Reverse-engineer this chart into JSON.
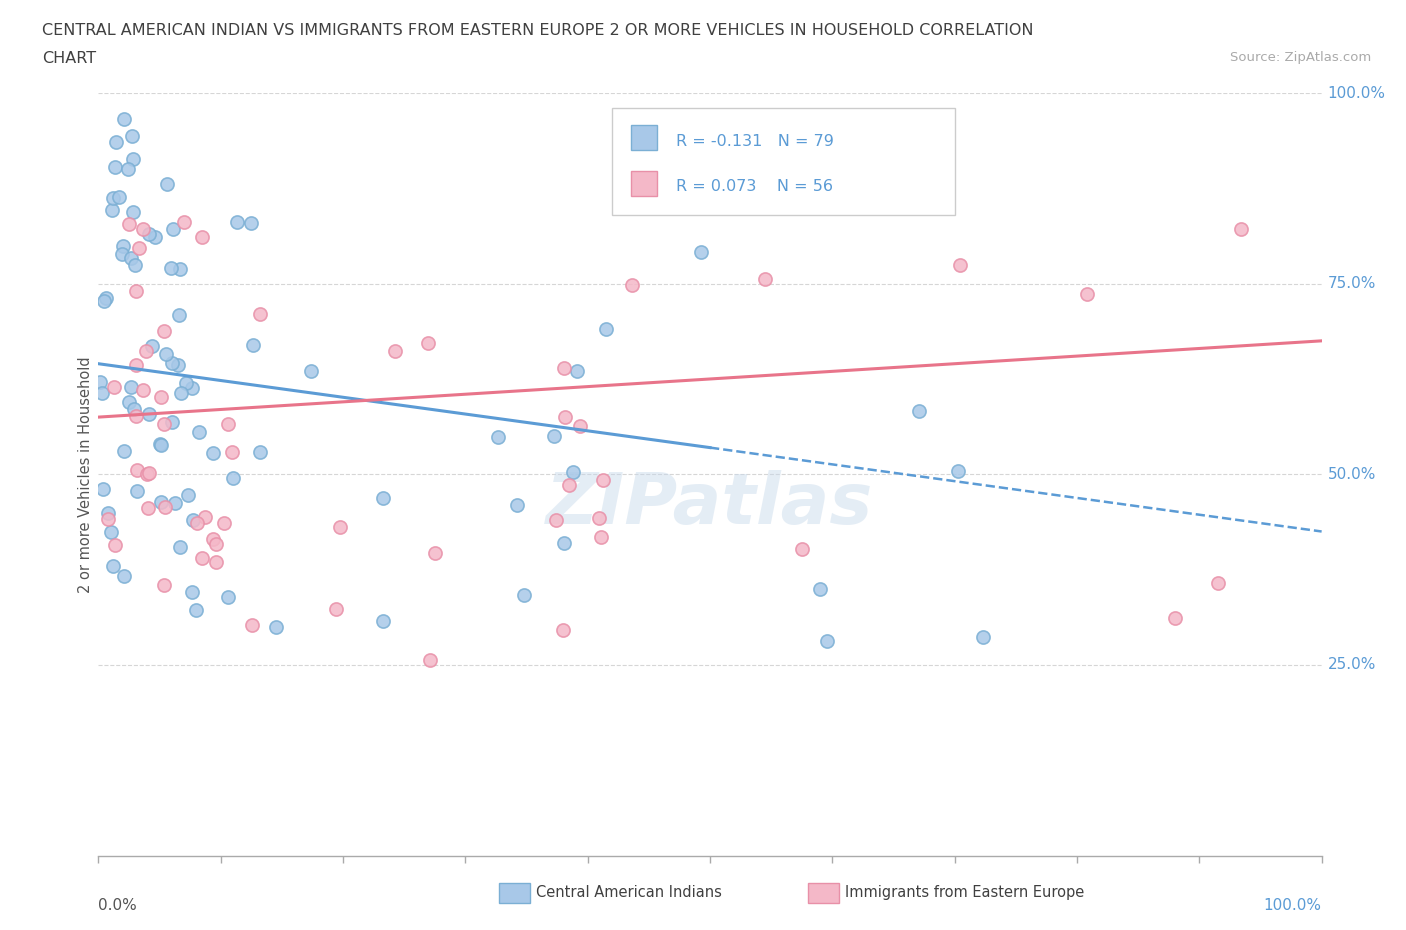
{
  "title_line1": "CENTRAL AMERICAN INDIAN VS IMMIGRANTS FROM EASTERN EUROPE 2 OR MORE VEHICLES IN HOUSEHOLD CORRELATION",
  "title_line2": "CHART",
  "source_text": "Source: ZipAtlas.com",
  "ylabel": "2 or more Vehicles in Household",
  "watermark": "ZIPatlas",
  "legend_r1": "R = -0.131",
  "legend_n1": "N = 79",
  "legend_r2": "R = 0.073",
  "legend_n2": "N = 56",
  "legend_label1": "Central American Indians",
  "legend_label2": "Immigrants from Eastern Europe",
  "color_blue_fill": "#a8c8e8",
  "color_blue_edge": "#7bafd4",
  "color_pink_fill": "#f4b8c8",
  "color_pink_edge": "#e890a8",
  "color_blue_line": "#5b9bd5",
  "color_pink_line": "#e8748a",
  "xlim": [
    0.0,
    1.0
  ],
  "ylim": [
    0.0,
    1.0
  ],
  "grid_color": "#cccccc",
  "background_color": "#ffffff",
  "tick_color": "#aaaaaa",
  "right_label_color": "#5b9bd5",
  "title_color": "#404040",
  "source_color": "#aaaaaa"
}
